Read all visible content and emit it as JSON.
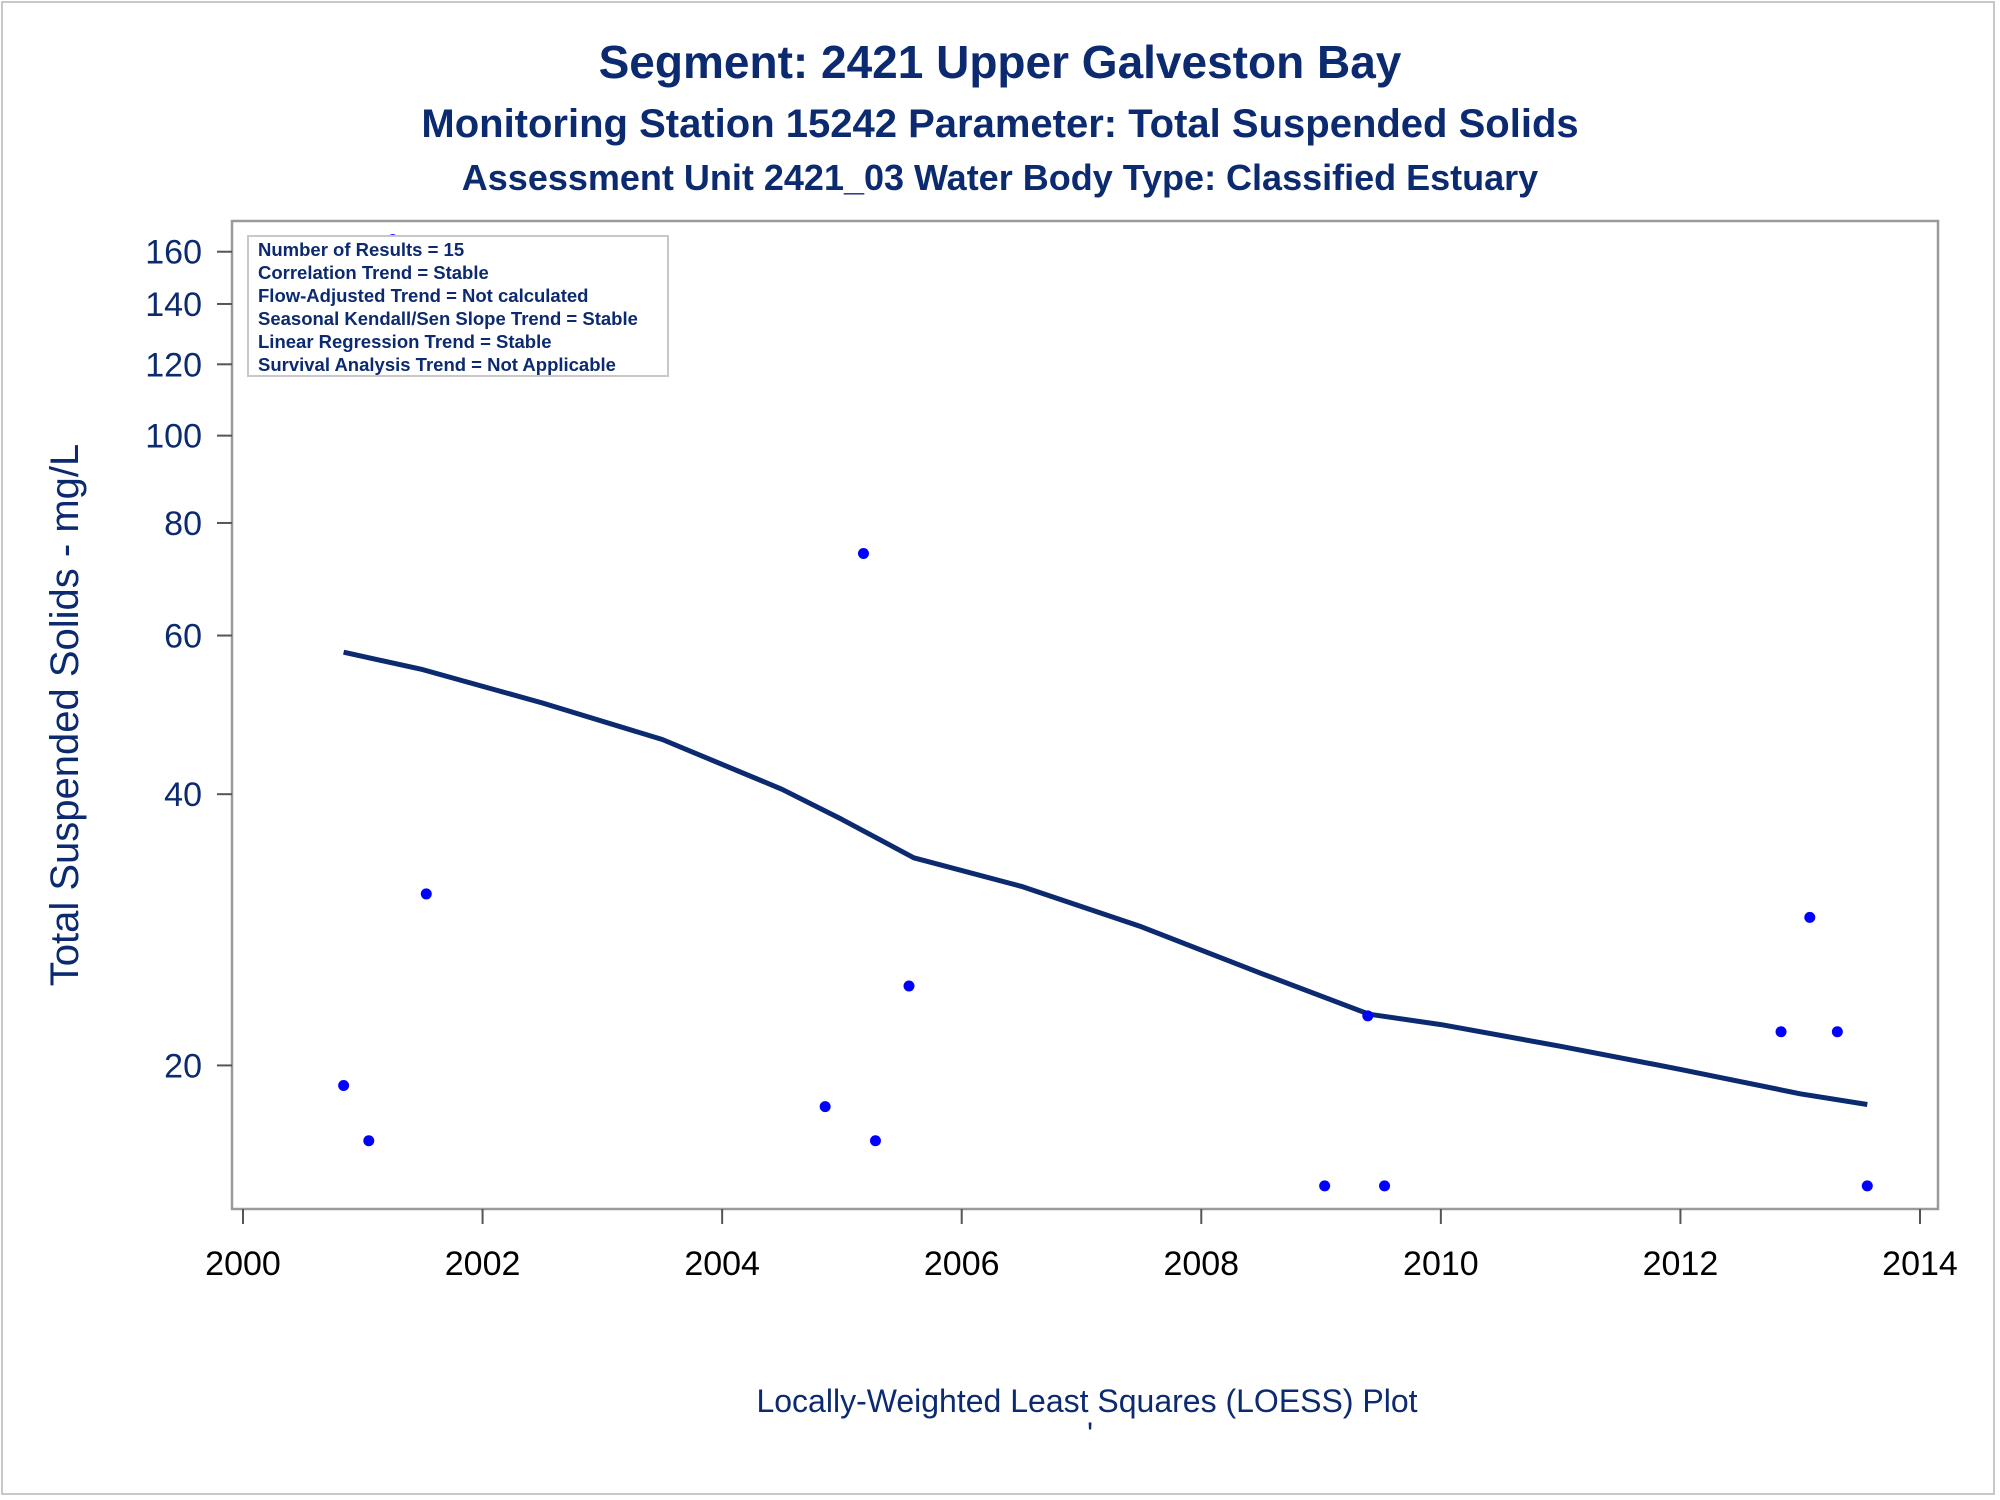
{
  "chart_data": {
    "type": "scatter",
    "title": "Segment: 2421  Upper Galveston Bay",
    "subtitle": "Monitoring Station 15242 Parameter: Total Suspended Solids",
    "subtitle2": "Assessment Unit 2421_03   Water Body Type: Classified Estuary",
    "ylabel": "Total Suspended Solids - mg/L",
    "xlabel": "Locally-Weighted Least Squares (LOESS) Plot",
    "y_scale": "log",
    "xlim": [
      2000,
      2014
    ],
    "ylim": [
      14,
      170
    ],
    "x_ticks": [
      2000,
      2002,
      2004,
      2006,
      2008,
      2010,
      2012,
      2014
    ],
    "y_ticks": [
      20,
      40,
      60,
      80,
      100,
      120,
      140,
      160
    ],
    "grid": false,
    "series": [
      {
        "type": "scatter",
        "color": "#0000ff",
        "points": [
          {
            "x": 2000.84,
            "y": 19
          },
          {
            "x": 2001.05,
            "y": 16.5
          },
          {
            "x": 2001.25,
            "y": 165
          },
          {
            "x": 2001.53,
            "y": 31
          },
          {
            "x": 2004.86,
            "y": 18
          },
          {
            "x": 2005.18,
            "y": 74
          },
          {
            "x": 2005.28,
            "y": 16.5
          },
          {
            "x": 2005.56,
            "y": 24.5
          },
          {
            "x": 2009.03,
            "y": 14.7
          },
          {
            "x": 2009.39,
            "y": 22.7
          },
          {
            "x": 2009.53,
            "y": 14.7
          },
          {
            "x": 2012.84,
            "y": 21.8
          },
          {
            "x": 2013.08,
            "y": 29.2
          },
          {
            "x": 2013.31,
            "y": 21.8
          },
          {
            "x": 2013.56,
            "y": 14.7
          }
        ]
      },
      {
        "type": "line",
        "color": "#0b2a6f",
        "points": [
          {
            "x": 2000.84,
            "y": 57.5
          },
          {
            "x": 2001.5,
            "y": 55
          },
          {
            "x": 2002.5,
            "y": 50.5
          },
          {
            "x": 2003.5,
            "y": 46
          },
          {
            "x": 2004.5,
            "y": 40.5
          },
          {
            "x": 2005.0,
            "y": 37.5
          },
          {
            "x": 2005.6,
            "y": 34
          },
          {
            "x": 2006.5,
            "y": 31.6
          },
          {
            "x": 2007.5,
            "y": 28.5
          },
          {
            "x": 2008.5,
            "y": 25.3
          },
          {
            "x": 2009.4,
            "y": 22.8
          },
          {
            "x": 2010.0,
            "y": 22.2
          },
          {
            "x": 2011.0,
            "y": 21.0
          },
          {
            "x": 2012.0,
            "y": 19.8
          },
          {
            "x": 2013.0,
            "y": 18.6
          },
          {
            "x": 2013.56,
            "y": 18.1
          }
        ]
      }
    ],
    "stats_box": {
      "lines": [
        "Number of Results = 15",
        "Correlation Trend = Stable",
        "Flow-Adjusted Trend = Not calculated",
        "Seasonal Kendall/Sen Slope Trend = Stable",
        "Linear Regression Trend = Stable",
        "Survival Analysis Trend = Not Applicable"
      ]
    },
    "footnote_mark": "'"
  }
}
